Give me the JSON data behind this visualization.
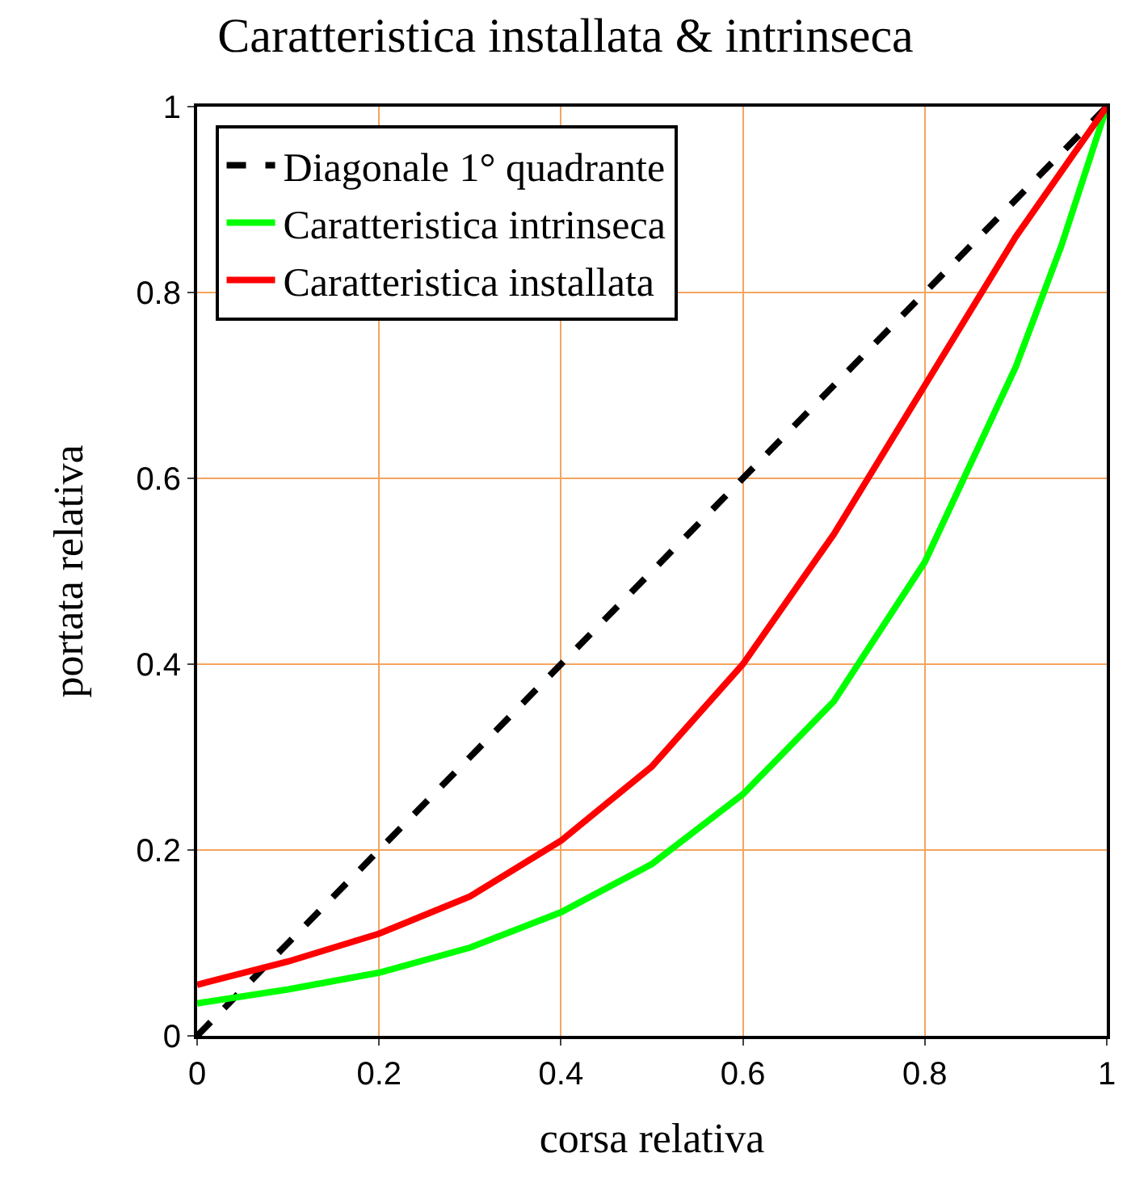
{
  "chart_data": {
    "type": "line",
    "title": "Caratteristica installata & intrinseca",
    "xlabel": "corsa relativa",
    "ylabel": "portata relativa",
    "xlim": [
      0,
      1
    ],
    "ylim": [
      0,
      1
    ],
    "xticks": [
      0,
      0.2,
      0.4,
      0.6,
      0.8,
      1
    ],
    "yticks": [
      0,
      0.2,
      0.4,
      0.6,
      0.8,
      1
    ],
    "grid": true,
    "legend": "top left",
    "marker": "none",
    "series": [
      {
        "name": "Diagonale 1° quadrante",
        "color": "#000000",
        "line_style": "dashed",
        "x": [
          0,
          1
        ],
        "values": [
          0,
          1
        ]
      },
      {
        "name": "Caratteristica intrinseca",
        "color": "#00ff00",
        "line_style": "solid",
        "x": [
          0,
          0.1,
          0.2,
          0.3,
          0.4,
          0.5,
          0.6,
          0.7,
          0.8,
          0.9,
          0.95,
          1
        ],
        "values": [
          0.035,
          0.05,
          0.068,
          0.095,
          0.133,
          0.185,
          0.26,
          0.36,
          0.51,
          0.72,
          0.85,
          1
        ]
      },
      {
        "name": "Caratteristica installata",
        "color": "#ff0000",
        "line_style": "solid",
        "x": [
          0,
          0.1,
          0.2,
          0.3,
          0.4,
          0.5,
          0.6,
          0.7,
          0.8,
          0.9,
          1
        ],
        "values": [
          0.055,
          0.08,
          0.11,
          0.15,
          0.21,
          0.29,
          0.4,
          0.54,
          0.7,
          0.86,
          1
        ]
      }
    ]
  }
}
